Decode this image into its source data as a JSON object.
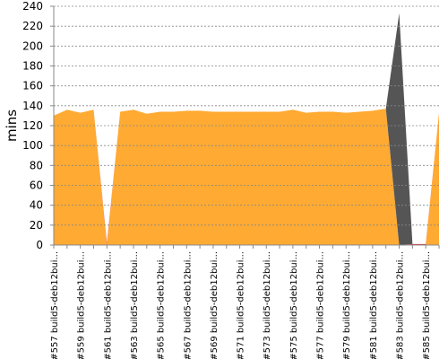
{
  "chart_data": {
    "type": "stacked-area",
    "y_label": "mins",
    "categories": [
      "#557 build5-deb12bui...",
      null,
      "#559 build5-deb12bui...",
      null,
      "#561 build5-deb12bui...",
      null,
      "#563 build5-deb12bui...",
      null,
      "#565 build5-deb12bui...",
      null,
      "#567 build5-deb12bui...",
      null,
      "#569 build5-deb12bui...",
      null,
      "#571 build5-deb12bui...",
      null,
      "#573 build5-deb12bui...",
      null,
      "#575 build5-deb12bui...",
      null,
      "#577 build5-deb12bui...",
      null,
      "#579 build5-deb12bui...",
      null,
      "#581 build5-deb12bui...",
      null,
      "#583 build5-deb12bui...",
      null,
      "#585 build5-deb12bui...",
      null
    ],
    "series": [
      {
        "color": "#ffaa33",
        "values": [
          130,
          136,
          133,
          136,
          0,
          134,
          136,
          132,
          134,
          134,
          135,
          135,
          134,
          134,
          134,
          134,
          134,
          134,
          136,
          133,
          134,
          134,
          133,
          134,
          135,
          137,
          0,
          0,
          0,
          133
        ]
      },
      {
        "color": "#dd3344",
        "values": [
          0,
          0,
          0,
          0,
          2,
          0,
          0,
          0,
          0,
          0,
          0,
          0,
          0,
          0,
          0,
          0,
          0,
          0,
          0,
          0,
          0,
          0,
          0,
          0,
          0,
          0,
          0,
          1,
          1,
          0
        ]
      },
      {
        "color": "#555555",
        "values": [
          0,
          0,
          0,
          0,
          0,
          0,
          0,
          0,
          0,
          0,
          0,
          0,
          0,
          0,
          0,
          0,
          0,
          0,
          0,
          0,
          0,
          0,
          0,
          0,
          0,
          0,
          233,
          0,
          0,
          0
        ]
      }
    ],
    "ylim": [
      0,
      240
    ],
    "yticks": [
      0,
      20,
      40,
      60,
      80,
      100,
      120,
      140,
      160,
      180,
      200,
      220,
      240
    ],
    "grid": true
  }
}
